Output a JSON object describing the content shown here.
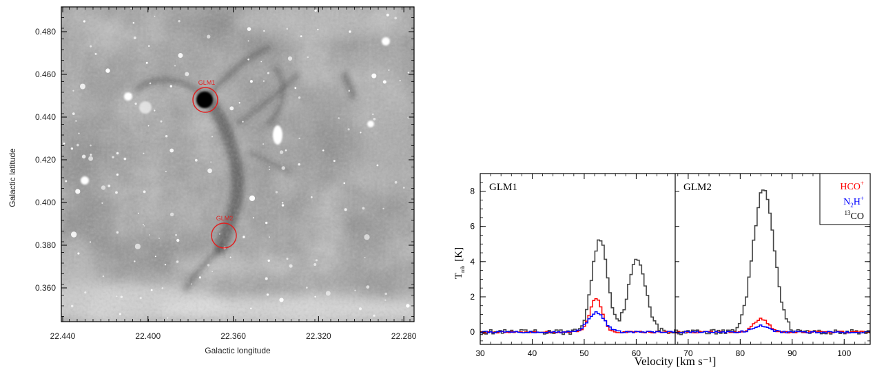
{
  "image_panel": {
    "xlabel": "Galactic longitude",
    "ylabel": "Galactic latitude",
    "xticks": [
      "22.440",
      "22.400",
      "22.360",
      "22.320",
      "22.280"
    ],
    "yticks": [
      "0.480",
      "0.460",
      "0.440",
      "0.420",
      "0.400",
      "0.380",
      "0.360"
    ],
    "source_labels": [
      "GLM1",
      "GLM2"
    ],
    "marker_color": "#e02020"
  },
  "chart_data": {
    "type": "line",
    "xlabel": "Velocity [km s⁻¹]",
    "ylabel": "T",
    "ylabel_sub": "mb",
    "ylabel_unit": "[K]",
    "ylim": [
      -0.7,
      9.0
    ],
    "yticks": [
      "0",
      "2",
      "4",
      "6",
      "8"
    ],
    "panels": [
      {
        "name": "GLM1",
        "xlim": [
          30,
          67.5
        ],
        "xticks": [
          "30",
          "40",
          "50",
          "60"
        ],
        "series": [
          {
            "name": "HCO⁺",
            "color": "#ff0000",
            "peaks": [
              {
                "x": 52.3,
                "y": 1.9,
                "w": 1.2
              }
            ],
            "baseline": 0.0
          },
          {
            "name": "N₂H⁺",
            "color": "#0000ff",
            "peaks": [
              {
                "x": 52.3,
                "y": 1.1,
                "w": 1.6
              }
            ],
            "baseline": 0.0
          },
          {
            "name": "¹³CO",
            "color": "#444444",
            "peaks": [
              {
                "x": 53.0,
                "y": 5.3,
                "w": 1.5
              },
              {
                "x": 60.2,
                "y": 4.1,
                "w": 1.7
              }
            ],
            "baseline": 0.0
          }
        ]
      },
      {
        "name": "GLM2",
        "xlim": [
          67.5,
          105
        ],
        "xticks": [
          "70",
          "80",
          "90",
          "100"
        ],
        "series": [
          {
            "name": "HCO⁺",
            "color": "#ff0000",
            "peaks": [
              {
                "x": 84.0,
                "y": 0.75,
                "w": 1.4
              }
            ],
            "baseline": 0.0
          },
          {
            "name": "N₂H⁺",
            "color": "#0000ff",
            "peaks": [
              {
                "x": 84.0,
                "y": 0.35,
                "w": 1.5
              }
            ],
            "baseline": 0.0
          },
          {
            "name": "¹³CO",
            "color": "#444444",
            "peaks": [
              {
                "x": 84.5,
                "y": 8.1,
                "w": 2.0
              }
            ],
            "baseline": 0.0
          }
        ]
      }
    ],
    "legend": {
      "placement": "top-right",
      "entries": [
        {
          "main": "HCO",
          "sup": "+",
          "color": "#ff0000"
        },
        {
          "main": "N",
          "sub": "2",
          "main2": "H",
          "sup": "+",
          "color": "#0000ff"
        },
        {
          "pre_sup": "13",
          "main": "CO",
          "color": "#000000"
        }
      ]
    }
  }
}
